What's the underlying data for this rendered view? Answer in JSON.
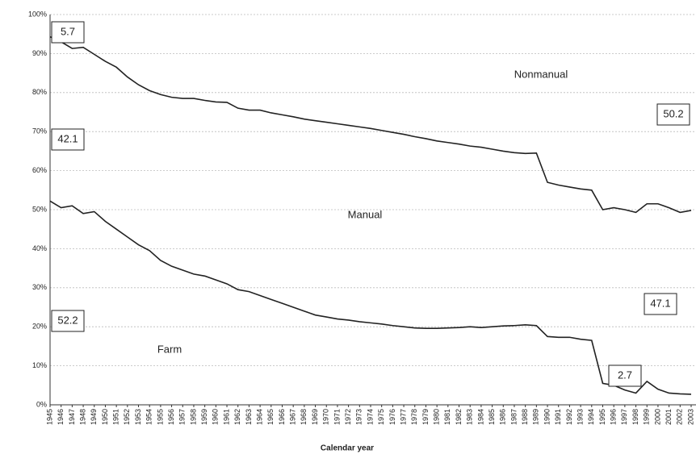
{
  "chart_data": {
    "type": "stacked_line",
    "x_label": "Calendar year",
    "categories": [
      "1945",
      "1946",
      "1947",
      "1948",
      "1949",
      "1950",
      "1951",
      "1952",
      "1953",
      "1954",
      "1955",
      "1956",
      "1957",
      "1958",
      "1959",
      "1960",
      "1961",
      "1962",
      "1963",
      "1964",
      "1965",
      "1966",
      "1967",
      "1968",
      "1969",
      "1970",
      "1971",
      "1972",
      "1973",
      "1974",
      "1975",
      "1976",
      "1977",
      "1978",
      "1979",
      "1980",
      "1981",
      "1982",
      "1983",
      "1984",
      "1985",
      "1986",
      "1987",
      "1988",
      "1989",
      "1990",
      "1991",
      "1992",
      "1993",
      "1994",
      "1995",
      "1996",
      "1997",
      "1998",
      "1999",
      "2000",
      "2001",
      "2002",
      "2003"
    ],
    "series": [
      {
        "name": "Farm",
        "color": "#222222",
        "values": [
          52.2,
          50.5,
          51,
          49,
          49.5,
          47,
          45,
          43,
          41,
          39.5,
          37,
          35.5,
          34.5,
          33.5,
          33,
          32,
          31,
          29.5,
          29,
          28,
          27,
          26,
          25,
          24,
          23,
          22.5,
          22,
          21.7,
          21.3,
          21,
          20.7,
          20.3,
          20,
          19.7,
          19.6,
          19.6,
          19.7,
          19.8,
          20,
          19.8,
          20,
          20.2,
          20.3,
          20.5,
          20.3,
          17.5,
          17.3,
          17.3,
          16.8,
          16.5,
          5.5,
          5,
          3.8,
          3,
          6,
          4,
          3,
          2.8,
          2.7
        ]
      },
      {
        "name": "Manual",
        "color": "#222222",
        "values": [
          42.1,
          42.5,
          40.3,
          42.6,
          40.3,
          41,
          41.5,
          41,
          41,
          41,
          42.5,
          43.3,
          44,
          45,
          45,
          45.6,
          46.5,
          46.5,
          46.5,
          47.5,
          47.8,
          48.3,
          48.8,
          49.2,
          49.8,
          49.9,
          50,
          49.9,
          49.9,
          49.8,
          49.6,
          49.5,
          49.3,
          49,
          48.6,
          48,
          47.5,
          47,
          46.3,
          46.2,
          45.5,
          44.8,
          44.3,
          43.9,
          44.2,
          39.5,
          39,
          38.5,
          38.5,
          38.5,
          44.5,
          45.5,
          46.2,
          46.3,
          45.5,
          47.5,
          47.5,
          46.5,
          47.1
        ]
      }
    ],
    "annotations": [
      "Nonmanual",
      "5.7",
      "42.1",
      "52.2",
      "50.2",
      "47.1",
      "2.7"
    ],
    "ylim": [
      0,
      100
    ],
    "yticks": [
      {
        "value": 0,
        "label": "0%"
      },
      {
        "value": 10,
        "label": "10%"
      },
      {
        "value": 20,
        "label": "20%"
      },
      {
        "value": 30,
        "label": "30%"
      },
      {
        "value": 40,
        "label": "40%"
      },
      {
        "value": 50,
        "label": "50%"
      },
      {
        "value": 60,
        "label": "60%"
      },
      {
        "value": 70,
        "label": "70%"
      },
      {
        "value": 80,
        "label": "80%"
      },
      {
        "value": 90,
        "label": "90%"
      },
      {
        "value": 100,
        "label": "100%"
      }
    ],
    "grid": true
  }
}
